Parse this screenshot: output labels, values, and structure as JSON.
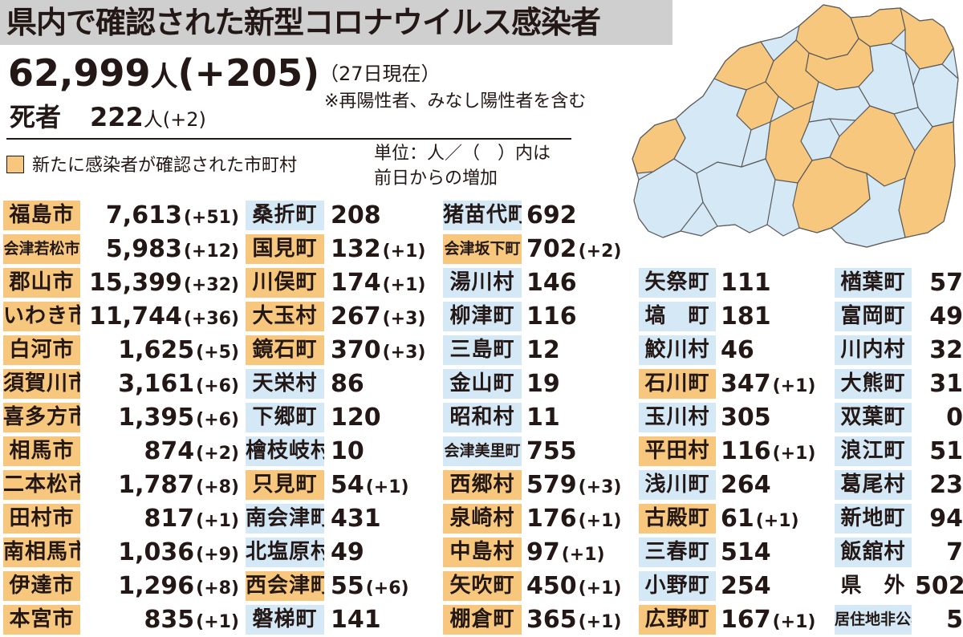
{
  "header": {
    "title": "県内で確認された新型コロナウイルス感染者",
    "total_count": "62,999",
    "total_unit": "人",
    "total_increase": "(+205)",
    "as_of": "（27日現在）",
    "note": "※再陽性者、みなし陽性者を含む",
    "deaths_label": "死者",
    "deaths_count": "222",
    "deaths_unit": "人",
    "deaths_increase": "(+2)"
  },
  "legend": {
    "text": "新たに感染者が確認された市町村",
    "color": "#f7c77e"
  },
  "unit_note": {
    "line1": "単位：人／（　）内は",
    "line2": "前日からの増加"
  },
  "colors": {
    "new_case": "#f7c77e",
    "no_new_case": "#d5e8f6",
    "title_bg": "#cfcfcf"
  },
  "columns": [
    [
      {
        "name": "福島市",
        "value": "7,613",
        "increase": "(+51)",
        "hl": "orange"
      },
      {
        "name": "会津若松市",
        "value": "5,983",
        "increase": "(+12)",
        "hl": "orange"
      },
      {
        "name": "郡山市",
        "value": "15,399",
        "increase": "(+32)",
        "hl": "orange"
      },
      {
        "name": "いわき市",
        "value": "11,744",
        "increase": "(+36)",
        "hl": "orange"
      },
      {
        "name": "白河市",
        "value": "1,625",
        "increase": "(+5)",
        "hl": "orange"
      },
      {
        "name": "須賀川市",
        "value": "3,161",
        "increase": "(+6)",
        "hl": "orange"
      },
      {
        "name": "喜多方市",
        "value": "1,395",
        "increase": "(+6)",
        "hl": "orange"
      },
      {
        "name": "相馬市",
        "value": "874",
        "increase": "(+2)",
        "hl": "orange"
      },
      {
        "name": "二本松市",
        "value": "1,787",
        "increase": "(+8)",
        "hl": "orange"
      },
      {
        "name": "田村市",
        "value": "817",
        "increase": "(+1)",
        "hl": "orange"
      },
      {
        "name": "南相馬市",
        "value": "1,036",
        "increase": "(+9)",
        "hl": "orange"
      },
      {
        "name": "伊達市",
        "value": "1,296",
        "increase": "(+8)",
        "hl": "orange"
      },
      {
        "name": "本宮市",
        "value": "835",
        "increase": "(+1)",
        "hl": "orange"
      }
    ],
    [
      {
        "name": "桑折町",
        "value": "208",
        "increase": "",
        "hl": "blue"
      },
      {
        "name": "国見町",
        "value": "132",
        "increase": "(+1)",
        "hl": "orange"
      },
      {
        "name": "川俣町",
        "value": "174",
        "increase": "(+1)",
        "hl": "orange"
      },
      {
        "name": "大玉村",
        "value": "267",
        "increase": "(+3)",
        "hl": "orange"
      },
      {
        "name": "鏡石町",
        "value": "370",
        "increase": "(+3)",
        "hl": "orange"
      },
      {
        "name": "天栄村",
        "value": "86",
        "increase": "",
        "hl": "blue"
      },
      {
        "name": "下郷町",
        "value": "120",
        "increase": "",
        "hl": "blue"
      },
      {
        "name": "檜枝岐村",
        "value": "10",
        "increase": "",
        "hl": "blue"
      },
      {
        "name": "只見町",
        "value": "54",
        "increase": "(+1)",
        "hl": "orange"
      },
      {
        "name": "南会津町",
        "value": "431",
        "increase": "",
        "hl": "blue"
      },
      {
        "name": "北塩原村",
        "value": "49",
        "increase": "",
        "hl": "blue"
      },
      {
        "name": "西会津町",
        "value": "55",
        "increase": "(+6)",
        "hl": "orange"
      },
      {
        "name": "磐梯町",
        "value": "141",
        "increase": "",
        "hl": "blue"
      }
    ],
    [
      {
        "name": "猪苗代町",
        "value": "692",
        "increase": "",
        "hl": "blue"
      },
      {
        "name": "会津坂下町",
        "value": "702",
        "increase": "(+2)",
        "hl": "orange"
      },
      {
        "name": "湯川村",
        "value": "146",
        "increase": "",
        "hl": "blue"
      },
      {
        "name": "柳津町",
        "value": "116",
        "increase": "",
        "hl": "blue"
      },
      {
        "name": "三島町",
        "value": "12",
        "increase": "",
        "hl": "blue"
      },
      {
        "name": "金山町",
        "value": "19",
        "increase": "",
        "hl": "blue"
      },
      {
        "name": "昭和村",
        "value": "11",
        "increase": "",
        "hl": "blue"
      },
      {
        "name": "会津美里町",
        "value": "755",
        "increase": "",
        "hl": "blue"
      },
      {
        "name": "西郷村",
        "value": "579",
        "increase": "(+3)",
        "hl": "orange"
      },
      {
        "name": "泉崎村",
        "value": "176",
        "increase": "(+1)",
        "hl": "orange"
      },
      {
        "name": "中島村",
        "value": "97",
        "increase": "(+1)",
        "hl": "orange"
      },
      {
        "name": "矢吹町",
        "value": "450",
        "increase": "(+1)",
        "hl": "orange"
      },
      {
        "name": "棚倉町",
        "value": "365",
        "increase": "(+1)",
        "hl": "orange"
      }
    ],
    [
      {
        "name": "矢祭町",
        "value": "111",
        "increase": "",
        "hl": "blue"
      },
      {
        "name": "塙　町",
        "value": "181",
        "increase": "",
        "hl": "blue"
      },
      {
        "name": "鮫川村",
        "value": "46",
        "increase": "",
        "hl": "blue"
      },
      {
        "name": "石川町",
        "value": "347",
        "increase": "(+1)",
        "hl": "orange"
      },
      {
        "name": "玉川村",
        "value": "305",
        "increase": "",
        "hl": "blue"
      },
      {
        "name": "平田村",
        "value": "116",
        "increase": "(+1)",
        "hl": "orange"
      },
      {
        "name": "浅川町",
        "value": "264",
        "increase": "",
        "hl": "blue"
      },
      {
        "name": "古殿町",
        "value": "61",
        "increase": "(+1)",
        "hl": "orange"
      },
      {
        "name": "三春町",
        "value": "514",
        "increase": "",
        "hl": "blue"
      },
      {
        "name": "小野町",
        "value": "254",
        "increase": "",
        "hl": "blue"
      },
      {
        "name": "広野町",
        "value": "167",
        "increase": "(+1)",
        "hl": "orange"
      }
    ],
    [
      {
        "name": "楢葉町",
        "value": "57",
        "increase": "",
        "hl": "blue"
      },
      {
        "name": "富岡町",
        "value": "49",
        "increase": "",
        "hl": "blue"
      },
      {
        "name": "川内村",
        "value": "32",
        "increase": "",
        "hl": "blue"
      },
      {
        "name": "大熊町",
        "value": "31",
        "increase": "",
        "hl": "blue"
      },
      {
        "name": "双葉町",
        "value": "0",
        "increase": "",
        "hl": "blue"
      },
      {
        "name": "浪江町",
        "value": "51",
        "increase": "",
        "hl": "blue"
      },
      {
        "name": "葛尾村",
        "value": "23",
        "increase": "",
        "hl": "blue"
      },
      {
        "name": "新地町",
        "value": "94",
        "increase": "",
        "hl": "blue"
      },
      {
        "name": "飯舘村",
        "value": "7",
        "increase": "",
        "hl": "blue"
      },
      {
        "name": "県　外",
        "value": "502",
        "increase": "",
        "hl": "plain"
      },
      {
        "name": "居住地非公表",
        "value": "5",
        "increase": "",
        "hl": "blue"
      }
    ]
  ]
}
